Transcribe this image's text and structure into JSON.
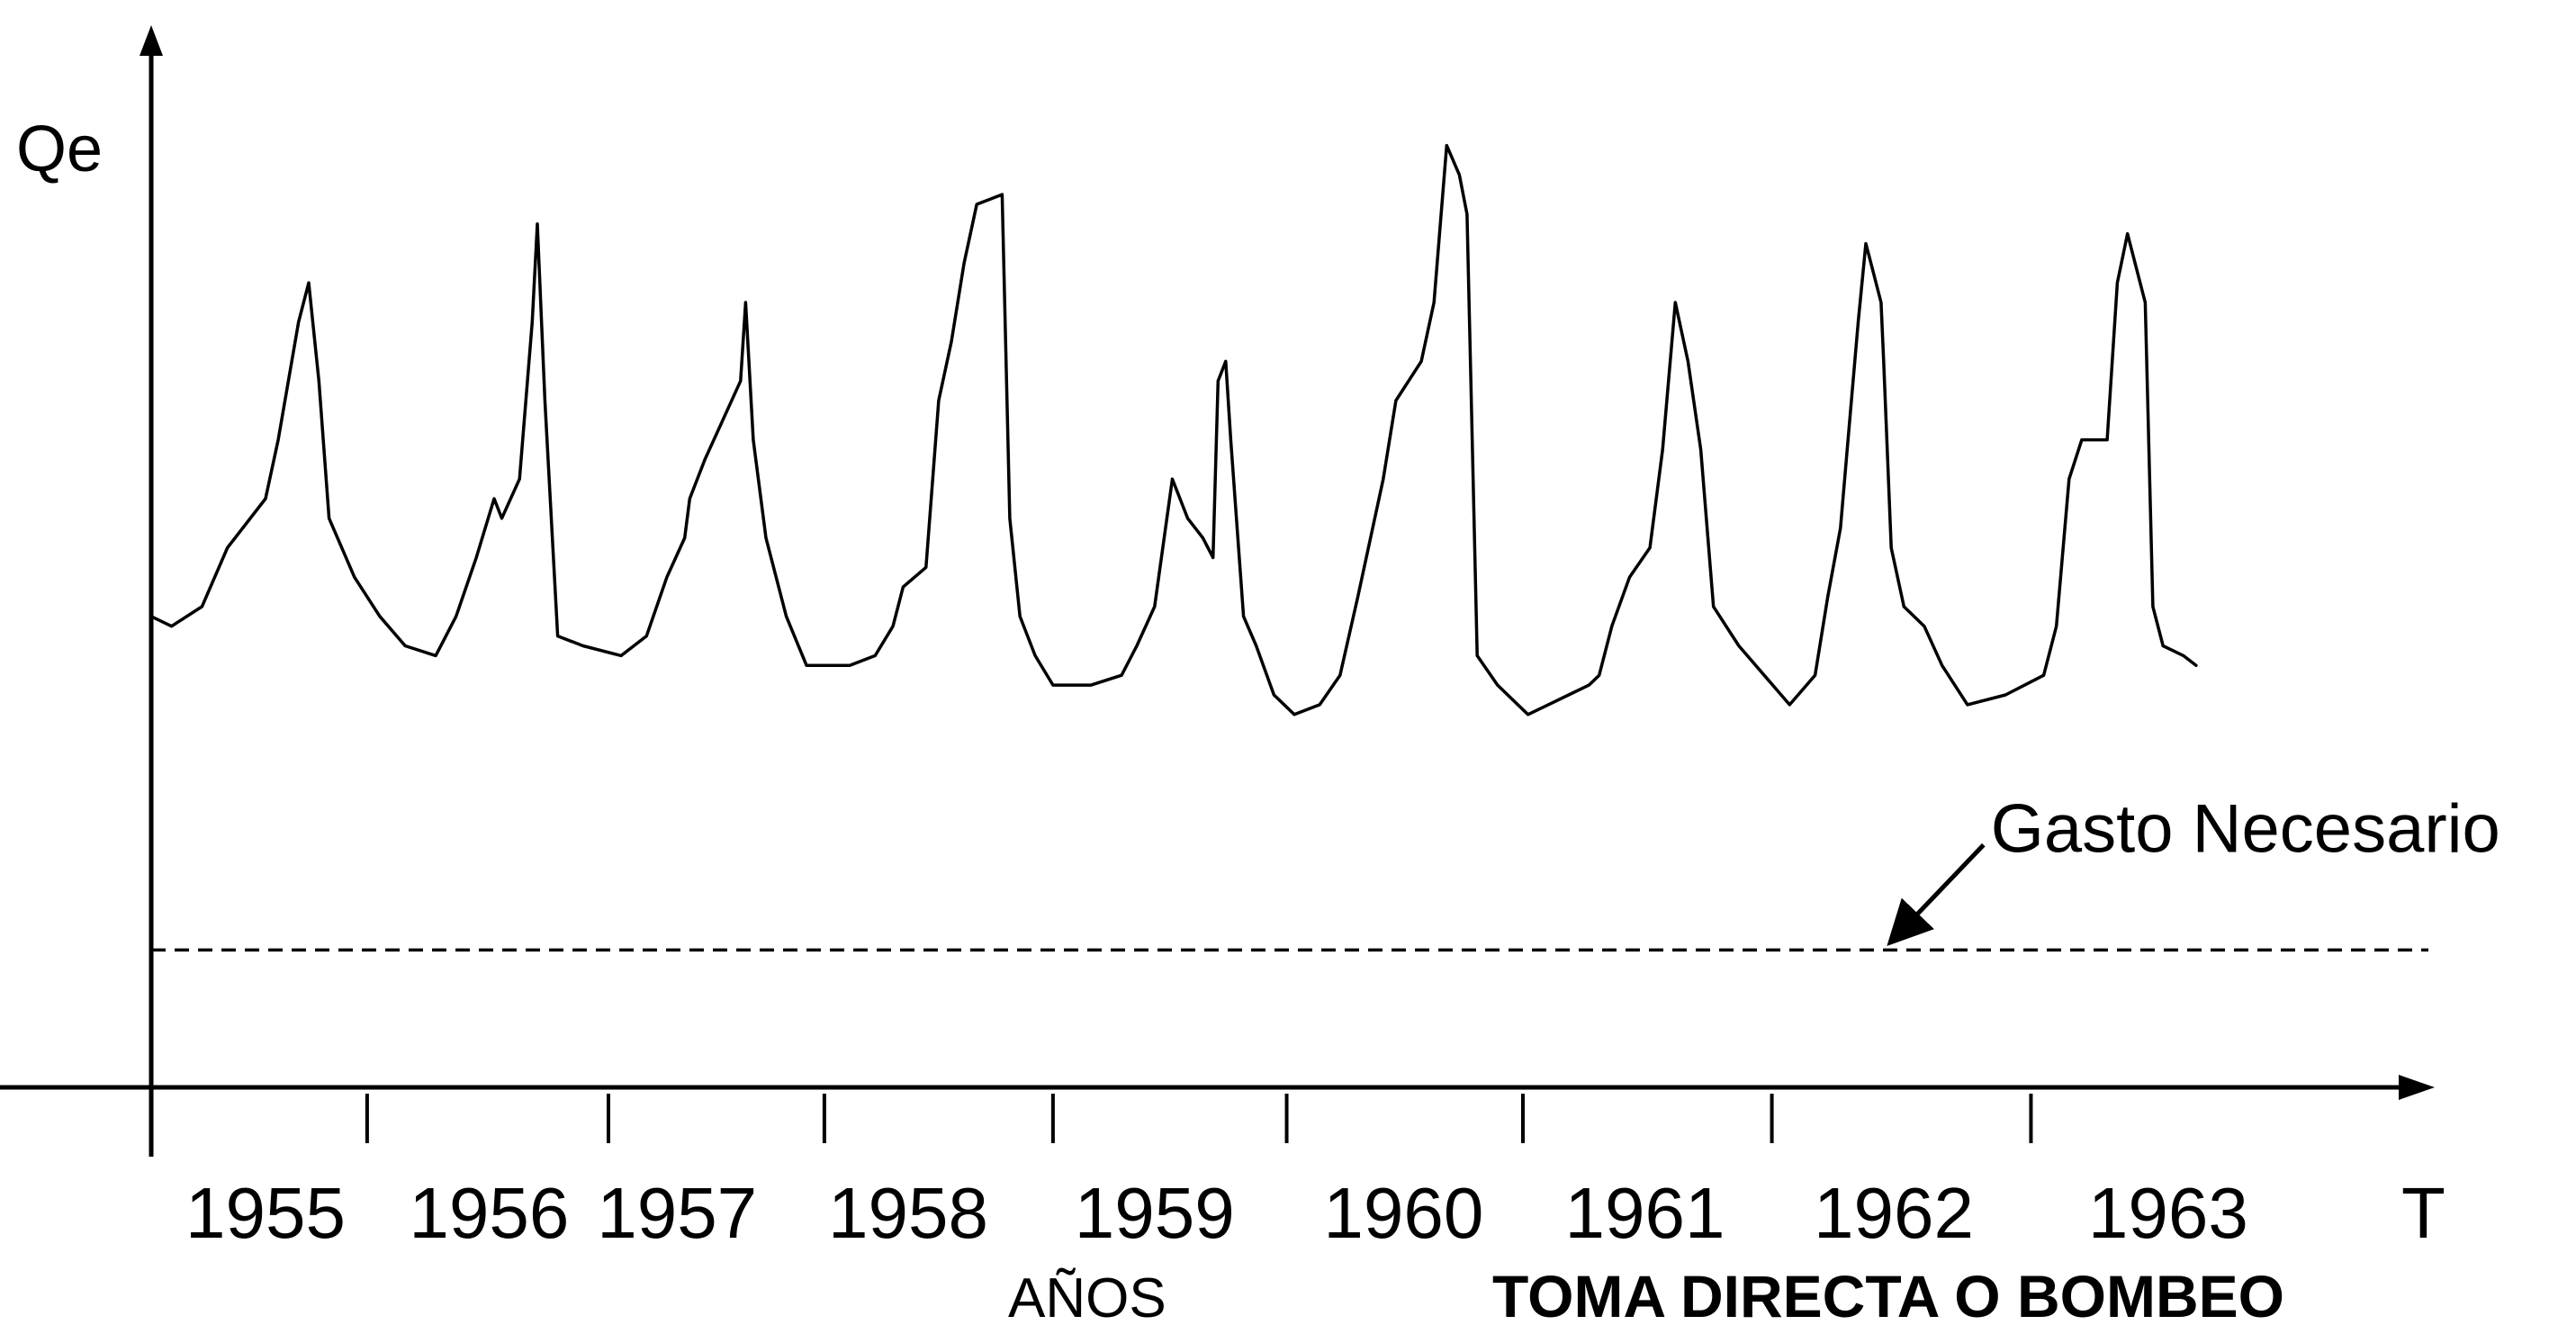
{
  "chart_data": {
    "type": "line",
    "ylabel": "Qe",
    "xlabel": "T",
    "x_subtitle": "AÑOS",
    "caption": "TOMA DIRECTA O BOMBEO",
    "grid": false,
    "legend": "none",
    "xlim": [
      1955.0,
      1964.0
    ],
    "ylim": [
      0,
      100
    ],
    "x_tick_positions": [
      1955.0,
      1955.85,
      1956.8,
      1957.65,
      1958.55,
      1959.47,
      1960.4,
      1961.38,
      1962.4
    ],
    "x_tick_labels": [
      {
        "label": "1955",
        "x": 1955.45
      },
      {
        "label": "1956",
        "x": 1956.33
      },
      {
        "label": "1957",
        "x": 1957.07
      },
      {
        "label": "1958",
        "x": 1957.98
      },
      {
        "label": "1959",
        "x": 1958.95
      },
      {
        "label": "1960",
        "x": 1959.93
      },
      {
        "label": "1961",
        "x": 1960.88
      },
      {
        "label": "1962",
        "x": 1961.86
      },
      {
        "label": "1963",
        "x": 1962.94
      }
    ],
    "series": [
      {
        "values": [
          [
            1955.0,
            48
          ],
          [
            1955.08,
            47
          ],
          [
            1955.2,
            49
          ],
          [
            1955.3,
            55
          ],
          [
            1955.45,
            60
          ],
          [
            1955.5,
            66
          ],
          [
            1955.58,
            78
          ],
          [
            1955.62,
            82
          ],
          [
            1955.66,
            72
          ],
          [
            1955.7,
            58
          ],
          [
            1955.8,
            52
          ],
          [
            1955.9,
            48
          ],
          [
            1956.0,
            45
          ],
          [
            1956.12,
            44
          ],
          [
            1956.2,
            48
          ],
          [
            1956.28,
            54
          ],
          [
            1956.35,
            60
          ],
          [
            1956.38,
            58
          ],
          [
            1956.45,
            62
          ],
          [
            1956.5,
            78
          ],
          [
            1956.52,
            88
          ],
          [
            1956.55,
            70
          ],
          [
            1956.6,
            46
          ],
          [
            1956.7,
            45
          ],
          [
            1956.85,
            44
          ],
          [
            1956.95,
            46
          ],
          [
            1957.03,
            52
          ],
          [
            1957.1,
            56
          ],
          [
            1957.12,
            60
          ],
          [
            1957.18,
            64
          ],
          [
            1957.25,
            68
          ],
          [
            1957.32,
            72
          ],
          [
            1957.34,
            80
          ],
          [
            1957.37,
            66
          ],
          [
            1957.42,
            56
          ],
          [
            1957.5,
            48
          ],
          [
            1957.58,
            43
          ],
          [
            1957.75,
            43
          ],
          [
            1957.85,
            44
          ],
          [
            1957.92,
            47
          ],
          [
            1957.96,
            51
          ],
          [
            1958.05,
            53
          ],
          [
            1958.1,
            70
          ],
          [
            1958.15,
            76
          ],
          [
            1958.2,
            84
          ],
          [
            1958.25,
            90
          ],
          [
            1958.35,
            91
          ],
          [
            1958.38,
            58
          ],
          [
            1958.42,
            48
          ],
          [
            1958.48,
            44
          ],
          [
            1958.55,
            41
          ],
          [
            1958.7,
            41
          ],
          [
            1958.82,
            42
          ],
          [
            1958.88,
            45
          ],
          [
            1958.95,
            49
          ],
          [
            1959.02,
            62
          ],
          [
            1959.08,
            58
          ],
          [
            1959.14,
            56
          ],
          [
            1959.18,
            54
          ],
          [
            1959.2,
            72
          ],
          [
            1959.23,
            74
          ],
          [
            1959.25,
            66
          ],
          [
            1959.3,
            48
          ],
          [
            1959.35,
            45
          ],
          [
            1959.42,
            40
          ],
          [
            1959.5,
            38
          ],
          [
            1959.6,
            39
          ],
          [
            1959.68,
            42
          ],
          [
            1959.75,
            50
          ],
          [
            1959.8,
            56
          ],
          [
            1959.85,
            62
          ],
          [
            1959.9,
            70
          ],
          [
            1960.0,
            74
          ],
          [
            1960.05,
            80
          ],
          [
            1960.1,
            96
          ],
          [
            1960.15,
            93
          ],
          [
            1960.18,
            89
          ],
          [
            1960.22,
            44
          ],
          [
            1960.3,
            41
          ],
          [
            1960.42,
            38
          ],
          [
            1960.5,
            39
          ],
          [
            1960.58,
            40
          ],
          [
            1960.66,
            41
          ],
          [
            1960.7,
            42
          ],
          [
            1960.75,
            47
          ],
          [
            1960.82,
            52
          ],
          [
            1960.9,
            55
          ],
          [
            1960.95,
            65
          ],
          [
            1961.0,
            80
          ],
          [
            1961.05,
            74
          ],
          [
            1961.1,
            65
          ],
          [
            1961.15,
            49
          ],
          [
            1961.25,
            45
          ],
          [
            1961.35,
            42
          ],
          [
            1961.45,
            39
          ],
          [
            1961.55,
            42
          ],
          [
            1961.6,
            50
          ],
          [
            1961.65,
            57
          ],
          [
            1961.68,
            66
          ],
          [
            1961.72,
            78
          ],
          [
            1961.75,
            86
          ],
          [
            1961.78,
            83
          ],
          [
            1961.81,
            80
          ],
          [
            1961.82,
            74
          ],
          [
            1961.85,
            55
          ],
          [
            1961.9,
            49
          ],
          [
            1961.98,
            47
          ],
          [
            1962.05,
            43
          ],
          [
            1962.15,
            39
          ],
          [
            1962.3,
            40
          ],
          [
            1962.45,
            42
          ],
          [
            1962.5,
            47
          ],
          [
            1962.55,
            62
          ],
          [
            1962.6,
            66
          ],
          [
            1962.7,
            66
          ],
          [
            1962.74,
            82
          ],
          [
            1962.78,
            87
          ],
          [
            1962.85,
            80
          ],
          [
            1962.88,
            49
          ],
          [
            1962.92,
            45
          ],
          [
            1963.0,
            44
          ],
          [
            1963.05,
            43
          ]
        ]
      }
    ],
    "reference_line": {
      "y": 14,
      "x_start": 1955.0,
      "x_end": 1964.0,
      "style": "dashed",
      "label": "Gasto Necesario",
      "label_x": 1962.1,
      "label_y": 26
    }
  }
}
